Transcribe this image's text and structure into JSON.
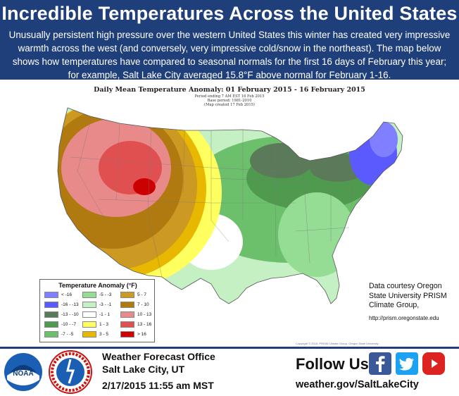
{
  "header": {
    "title": "Incredible Temperatures Across the United States",
    "description": "Unusually persistent high pressure over the western United States this winter has created very impressive warmth across the west (and conversely, very impressive cold/snow in the northeast). The map below shows how temperatures have compared to seasonal normals for the first 16 days of February this year; for example, Salt Lake City averaged 15.8°F above normal for February 1-16."
  },
  "map": {
    "title": "Daily Mean Temperature Anomaly: 01 February 2015 - 16 February 2015",
    "subtitle_lines": [
      "Period ending 7 AM EST 16 Feb 2015",
      "Base period: 1981-2010",
      "(Map created 17 Feb 2015)"
    ],
    "copyright": "Copyright © 2015, PRISM Climate Group, Oregon State University"
  },
  "legend": {
    "title": "Temperature Anomaly (°F)",
    "items": [
      {
        "label": "< -16",
        "color": "#7f7fff"
      },
      {
        "label": "-16 - -13",
        "color": "#5a5aff"
      },
      {
        "label": "-13 - -10",
        "color": "#5a7a5a"
      },
      {
        "label": "-10 - -7",
        "color": "#4f9a4f"
      },
      {
        "label": "-7 - -5",
        "color": "#6cc06c"
      },
      {
        "label": "-5 - -3",
        "color": "#95dd95"
      },
      {
        "label": "-3 - -1",
        "color": "#c4f0c4"
      },
      {
        "label": "-1 - 1",
        "color": "#ffffff"
      },
      {
        "label": "1 - 3",
        "color": "#ffff60"
      },
      {
        "label": "3 - 5",
        "color": "#e8b800"
      },
      {
        "label": "5 - 7",
        "color": "#cc9922"
      },
      {
        "label": "7 - 10",
        "color": "#b07a10"
      },
      {
        "label": "10 - 13",
        "color": "#e98a8a"
      },
      {
        "label": "13 - 16",
        "color": "#e05050"
      },
      {
        "label": "> 16",
        "color": "#cc0000"
      }
    ]
  },
  "courtesy": {
    "text": "Data courtesy Oregon State University PRISM Climate Group,",
    "url": "http://prism.oregonstate.edu"
  },
  "footer": {
    "office_name": "Weather Forecast Office",
    "office_location": "Salt Lake City, UT",
    "datetime": "2/17/2015   11:55 am MST",
    "follow": "Follow Us:",
    "website": "weather.gov/SaltLakeCity",
    "noaa_logo_text": "NOAA",
    "nws_logo_text": "NATIONAL WEATHER SERVICE"
  }
}
